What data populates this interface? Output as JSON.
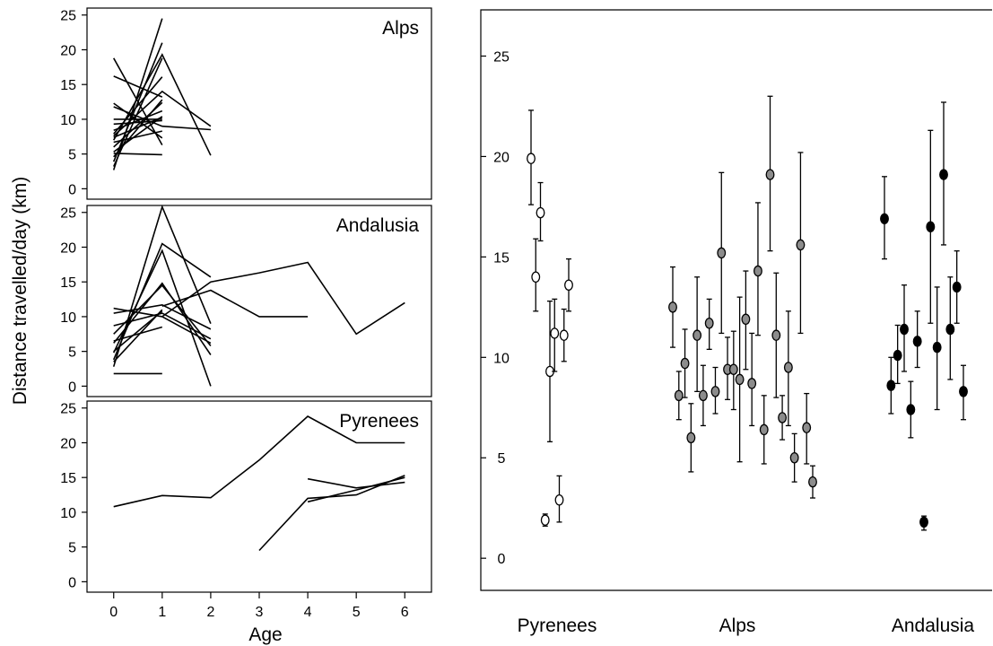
{
  "figure": {
    "ylabel": "Distance travelled/day (km)",
    "xlabel": "Age"
  },
  "chart_data": [
    {
      "type": "line",
      "panel": "Alps",
      "title": "Alps",
      "xticks": [
        0,
        1,
        2,
        3,
        4,
        5,
        6
      ],
      "yticks": [
        0,
        5,
        10,
        15,
        20,
        25
      ],
      "ylim": [
        -1.5,
        26
      ],
      "xlim": [
        -0.55,
        6.55
      ],
      "grid": false,
      "series": [
        {
          "x": [
            0,
            1
          ],
          "y": [
            2.7,
            24.5
          ]
        },
        {
          "x": [
            0,
            1
          ],
          "y": [
            3.2,
            18.8
          ]
        },
        {
          "x": [
            0,
            1
          ],
          "y": [
            3.9,
            21.0
          ]
        },
        {
          "x": [
            0,
            1
          ],
          "y": [
            4.6,
            12.8
          ]
        },
        {
          "x": [
            0,
            1
          ],
          "y": [
            5.3,
            10.4
          ]
        },
        {
          "x": [
            0,
            1
          ],
          "y": [
            6.0,
            12.4
          ]
        },
        {
          "x": [
            0,
            1
          ],
          "y": [
            6.7,
            8.3
          ]
        },
        {
          "x": [
            0,
            1
          ],
          "y": [
            7.4,
            10.3
          ]
        },
        {
          "x": [
            0,
            1
          ],
          "y": [
            7.9,
            16.1
          ]
        },
        {
          "x": [
            0,
            1
          ],
          "y": [
            8.4,
            11.2
          ]
        },
        {
          "x": [
            0,
            1
          ],
          "y": [
            9.3,
            9.8
          ]
        },
        {
          "x": [
            0,
            1
          ],
          "y": [
            10.0,
            10.0
          ]
        },
        {
          "x": [
            0,
            1
          ],
          "y": [
            12.3,
            7.3
          ]
        },
        {
          "x": [
            0,
            1
          ],
          "y": [
            16.2,
            13.2
          ]
        },
        {
          "x": [
            0,
            1
          ],
          "y": [
            18.8,
            6.3
          ]
        },
        {
          "x": [
            0,
            1
          ],
          "y": [
            5.1,
            4.9
          ]
        },
        {
          "x": [
            0,
            1,
            2
          ],
          "y": [
            7.0,
            19.3,
            4.8
          ]
        },
        {
          "x": [
            0,
            1,
            2
          ],
          "y": [
            7.6,
            14.0,
            9.0
          ]
        },
        {
          "x": [
            0,
            1,
            2
          ],
          "y": [
            11.8,
            9.0,
            8.5
          ]
        }
      ]
    },
    {
      "type": "line",
      "panel": "Andalusia",
      "title": "Andalusia",
      "xticks": [
        0,
        1,
        2,
        3,
        4,
        5,
        6
      ],
      "yticks": [
        0,
        5,
        10,
        15,
        20,
        25
      ],
      "ylim": [
        -1.5,
        26
      ],
      "xlim": [
        -0.55,
        6.55
      ],
      "grid": false,
      "series": [
        {
          "x": [
            0,
            1
          ],
          "y": [
            1.8,
            1.8
          ]
        },
        {
          "x": [
            0,
            1
          ],
          "y": [
            3.5,
            11.0
          ]
        },
        {
          "x": [
            0,
            1
          ],
          "y": [
            5.0,
            10.8
          ]
        },
        {
          "x": [
            0,
            1
          ],
          "y": [
            6.5,
            8.5
          ]
        },
        {
          "x": [
            0,
            1,
            2
          ],
          "y": [
            2.8,
            25.8,
            9.0
          ]
        },
        {
          "x": [
            0,
            1,
            2
          ],
          "y": [
            3.8,
            20.5,
            15.7
          ]
        },
        {
          "x": [
            0,
            1,
            2
          ],
          "y": [
            4.8,
            19.5,
            0.0
          ]
        },
        {
          "x": [
            0,
            1,
            2
          ],
          "y": [
            6.2,
            14.8,
            4.5
          ]
        },
        {
          "x": [
            0,
            1,
            2
          ],
          "y": [
            7.5,
            14.5,
            5.8
          ]
        },
        {
          "x": [
            0,
            1,
            2
          ],
          "y": [
            8.7,
            10.5,
            6.8
          ]
        },
        {
          "x": [
            0,
            1,
            2
          ],
          "y": [
            10.5,
            11.7,
            8.2
          ]
        },
        {
          "x": [
            0,
            1,
            2
          ],
          "y": [
            11.2,
            10.0,
            6.2
          ]
        },
        {
          "x": [
            1,
            2,
            3,
            4
          ],
          "y": [
            11.5,
            13.8,
            10.0,
            10.0
          ]
        },
        {
          "x": [
            1,
            2,
            3,
            4,
            5,
            6
          ],
          "y": [
            10.0,
            15.0,
            16.3,
            17.8,
            7.5,
            12.0
          ]
        }
      ]
    },
    {
      "type": "line",
      "panel": "Pyrenees",
      "title": "Pyrenees",
      "xticks": [
        0,
        1,
        2,
        3,
        4,
        5,
        6
      ],
      "yticks": [
        0,
        5,
        10,
        15,
        20,
        25
      ],
      "ylim": [
        -1.5,
        26
      ],
      "xlim": [
        -0.55,
        6.55
      ],
      "grid": false,
      "series": [
        {
          "x": [
            0,
            1,
            2,
            3,
            4,
            5,
            6
          ],
          "y": [
            10.8,
            12.4,
            12.1,
            17.5,
            23.8,
            20.0,
            20.0
          ]
        },
        {
          "x": [
            3,
            4,
            5,
            6
          ],
          "y": [
            4.5,
            12.0,
            12.5,
            15.3
          ]
        },
        {
          "x": [
            4,
            5,
            6
          ],
          "y": [
            11.5,
            13.2,
            15.0
          ]
        },
        {
          "x": [
            4,
            5,
            6
          ],
          "y": [
            14.8,
            13.5,
            14.3
          ]
        }
      ]
    },
    {
      "type": "scatter",
      "panel": "means",
      "categories": [
        "Pyrenees",
        "Alps",
        "Andalusia"
      ],
      "yticks": [
        0,
        5,
        10,
        15,
        20,
        25
      ],
      "ylim": [
        -1.6,
        27.3
      ],
      "grid": false,
      "marker_colors": {
        "Pyrenees": "#ffffff",
        "Alps": "#8c8c8c",
        "Andalusia": "#000000"
      },
      "series": [
        {
          "name": "Pyrenees",
          "points": [
            {
              "y": 19.9,
              "lo": 17.6,
              "hi": 22.3
            },
            {
              "y": 14.0,
              "lo": 12.3,
              "hi": 15.9
            },
            {
              "y": 17.2,
              "lo": 15.8,
              "hi": 18.7
            },
            {
              "y": 1.9,
              "lo": 1.6,
              "hi": 2.2
            },
            {
              "y": 9.3,
              "lo": 5.8,
              "hi": 12.8
            },
            {
              "y": 11.2,
              "lo": 9.3,
              "hi": 12.9
            },
            {
              "y": 2.9,
              "lo": 1.8,
              "hi": 4.1
            },
            {
              "y": 11.1,
              "lo": 9.8,
              "hi": 12.4
            },
            {
              "y": 13.6,
              "lo": 12.3,
              "hi": 14.9
            }
          ]
        },
        {
          "name": "Alps",
          "points": [
            {
              "y": 12.5,
              "lo": 10.5,
              "hi": 14.5
            },
            {
              "y": 8.1,
              "lo": 6.9,
              "hi": 9.3
            },
            {
              "y": 9.7,
              "lo": 8.0,
              "hi": 11.4
            },
            {
              "y": 6.0,
              "lo": 4.3,
              "hi": 7.7
            },
            {
              "y": 11.1,
              "lo": 8.3,
              "hi": 14.0
            },
            {
              "y": 8.1,
              "lo": 6.6,
              "hi": 9.6
            },
            {
              "y": 11.7,
              "lo": 10.4,
              "hi": 12.9
            },
            {
              "y": 8.3,
              "lo": 7.2,
              "hi": 9.5
            },
            {
              "y": 15.2,
              "lo": 11.2,
              "hi": 19.2
            },
            {
              "y": 9.4,
              "lo": 7.9,
              "hi": 11.0
            },
            {
              "y": 9.4,
              "lo": 7.4,
              "hi": 11.3
            },
            {
              "y": 8.9,
              "lo": 4.8,
              "hi": 13.0
            },
            {
              "y": 11.9,
              "lo": 9.4,
              "hi": 14.3
            },
            {
              "y": 8.7,
              "lo": 6.6,
              "hi": 11.2
            },
            {
              "y": 14.3,
              "lo": 11.1,
              "hi": 17.7
            },
            {
              "y": 6.4,
              "lo": 4.7,
              "hi": 8.1
            },
            {
              "y": 19.1,
              "lo": 15.3,
              "hi": 23.0
            },
            {
              "y": 11.1,
              "lo": 8.0,
              "hi": 14.2
            },
            {
              "y": 7.0,
              "lo": 5.9,
              "hi": 8.1
            },
            {
              "y": 9.5,
              "lo": 6.6,
              "hi": 12.3
            },
            {
              "y": 5.0,
              "lo": 3.8,
              "hi": 6.2
            },
            {
              "y": 15.6,
              "lo": 11.2,
              "hi": 20.2
            },
            {
              "y": 6.5,
              "lo": 4.7,
              "hi": 8.2
            },
            {
              "y": 3.8,
              "lo": 3.0,
              "hi": 4.6
            }
          ]
        },
        {
          "name": "Andalusia",
          "points": [
            {
              "y": 16.9,
              "lo": 14.9,
              "hi": 19.0
            },
            {
              "y": 8.6,
              "lo": 7.2,
              "hi": 10.0
            },
            {
              "y": 10.1,
              "lo": 8.7,
              "hi": 11.6
            },
            {
              "y": 11.4,
              "lo": 9.3,
              "hi": 13.6
            },
            {
              "y": 7.4,
              "lo": 6.0,
              "hi": 8.8
            },
            {
              "y": 10.8,
              "lo": 9.5,
              "hi": 12.3
            },
            {
              "y": 1.8,
              "lo": 1.4,
              "hi": 2.1
            },
            {
              "y": 16.5,
              "lo": 11.7,
              "hi": 21.3
            },
            {
              "y": 10.5,
              "lo": 7.4,
              "hi": 13.5
            },
            {
              "y": 19.1,
              "lo": 15.6,
              "hi": 22.7
            },
            {
              "y": 11.4,
              "lo": 8.9,
              "hi": 14.0
            },
            {
              "y": 13.5,
              "lo": 11.7,
              "hi": 15.3
            },
            {
              "y": 8.3,
              "lo": 6.9,
              "hi": 9.6
            }
          ]
        }
      ]
    }
  ]
}
